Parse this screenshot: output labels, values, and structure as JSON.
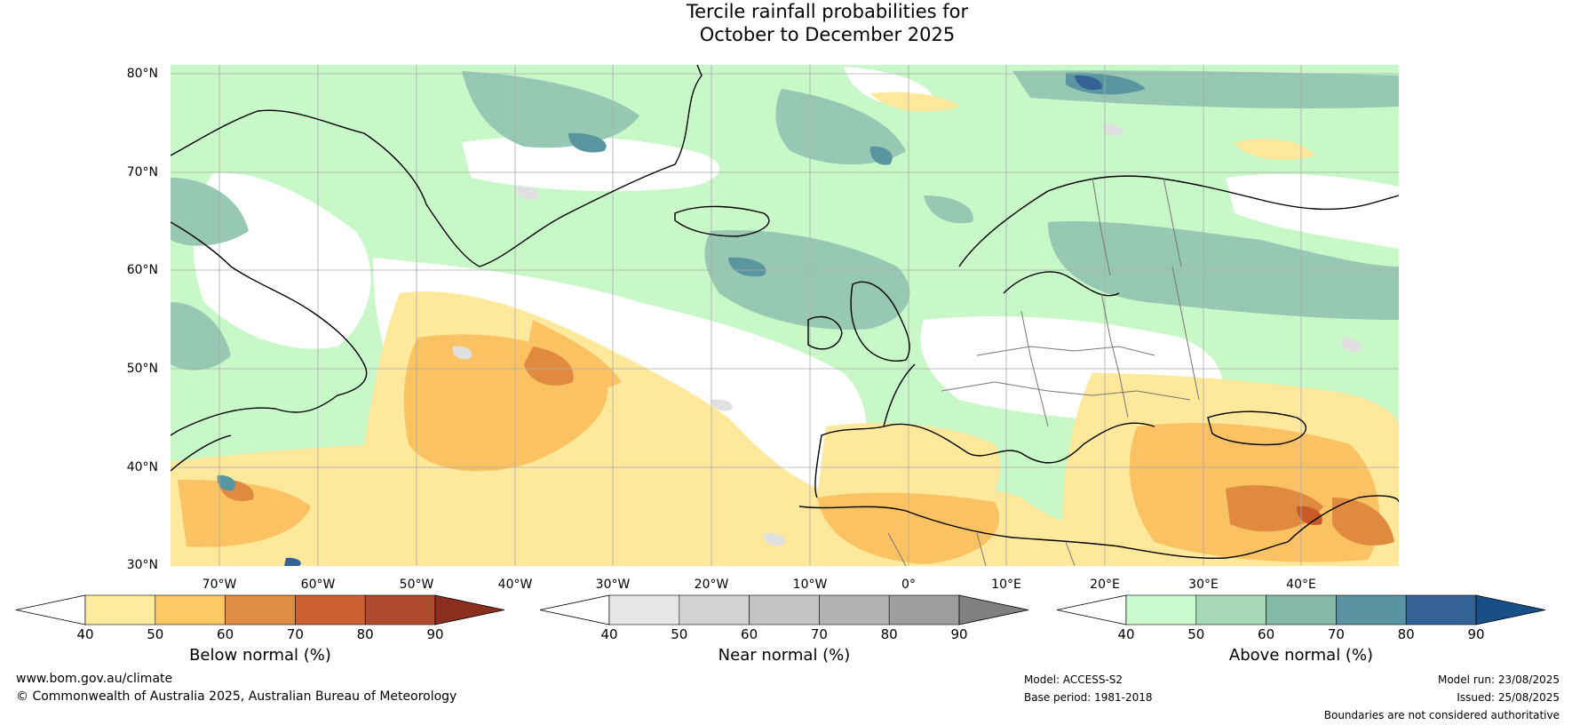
{
  "title": {
    "line1": "Tercile rainfall probabilities for",
    "line2": "October to December 2025"
  },
  "map": {
    "lat_labels": [
      "80°N",
      "70°N",
      "60°N",
      "50°N",
      "40°N",
      "30°N"
    ],
    "lon_labels": [
      "70°W",
      "60°W",
      "50°W",
      "40°W",
      "30°W",
      "20°W",
      "10°W",
      "0°",
      "10°E",
      "20°E",
      "30°E",
      "40°E"
    ],
    "lat_range": [
      30,
      81
    ],
    "lon_range": [
      -76,
      49
    ],
    "colors": {
      "above_50": "#c8f7c8",
      "above_60": "#96c8b4",
      "above_70": "#5a96a0",
      "below_50": "#fde89c",
      "below_60": "#fbc264",
      "below_70": "#e08a40",
      "below_80": "#c85a28",
      "near_50": "#e0e0e0",
      "land_outline": "#000000",
      "border": "#777777",
      "grid": "#aaaaaa"
    }
  },
  "colorbars": [
    {
      "title": "Below normal (%)",
      "ticks": [
        "40",
        "50",
        "60",
        "70",
        "80",
        "90"
      ],
      "colors": [
        "#ffffff",
        "#feeba0",
        "#fdc866",
        "#e08d44",
        "#cc6233",
        "#ae4a2d",
        "#8c2e20"
      ]
    },
    {
      "title": "Near normal (%)",
      "ticks": [
        "40",
        "50",
        "60",
        "70",
        "80",
        "90"
      ],
      "colors": [
        "#ffffff",
        "#e6e6e6",
        "#d3d3d3",
        "#c4c4c4",
        "#b3b3b3",
        "#9e9e9e",
        "#808080"
      ]
    },
    {
      "title": "Above normal (%)",
      "ticks": [
        "40",
        "50",
        "60",
        "70",
        "80",
        "90"
      ],
      "colors": [
        "#ffffff",
        "#c9f9cc",
        "#a6d8b8",
        "#86b8a8",
        "#5a92a1",
        "#346295",
        "#174f86"
      ]
    }
  ],
  "footer": {
    "website": "www.bom.gov.au/climate",
    "copyright": "© Commonwealth of Australia 2025, Australian Bureau of Meteorology",
    "model": "Model: ACCESS-S2",
    "base_period": "Base period: 1981-2018",
    "model_run": "Model run: 23/08/2025",
    "issued": "Issued: 25/08/2025",
    "disclaimer": "Boundaries are not considered authoritative"
  }
}
